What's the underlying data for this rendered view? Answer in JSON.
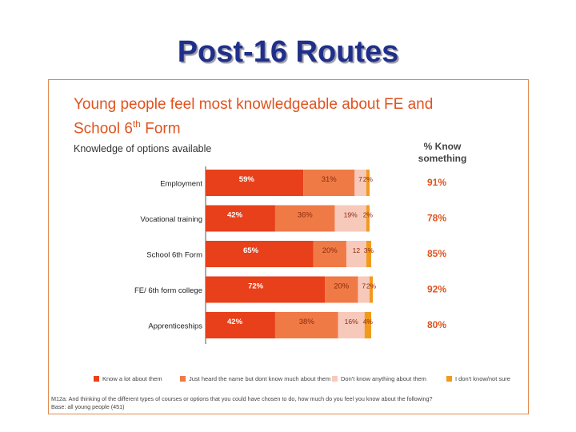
{
  "slide": {
    "title": "Post-16 Routes"
  },
  "headline": {
    "line1": "Young people feel most knowledgeable about FE and",
    "line2_pre": "School 6",
    "line2_sup": "th",
    "line2_post": " Form"
  },
  "subtitle": "Knowledge of options available",
  "column_header": {
    "line1": "% Know",
    "line2": "something"
  },
  "footnote": {
    "question": "M12a: And thinking of the different types of courses or options that you could have chosen to do, how much do you feel you know about the following?",
    "base": "Base: all young people (451)"
  },
  "colors": {
    "panel_border": "#e28a4b",
    "title": "#1f2f8a",
    "headline": "#e0531f",
    "know_something_text": "#e0531f"
  },
  "chart_data": {
    "type": "bar",
    "orientation": "horizontal",
    "stacked": true,
    "categories": [
      "Employment",
      "Vocational training",
      "School 6th Form",
      "FE/ 6th form college",
      "Apprenticeships"
    ],
    "series": [
      {
        "name": "Know a lot about them",
        "color": "#e8401a",
        "values": [
          59,
          42,
          65,
          72,
          42
        ],
        "labels": [
          "59%",
          "42%",
          "65%",
          "72%",
          "42%"
        ],
        "label_color": "#ffffff"
      },
      {
        "name": "Just heard the name but dont know much about them",
        "color": "#f07a45",
        "values": [
          31,
          36,
          20,
          20,
          38
        ],
        "labels": [
          "31%",
          "36%",
          "20%",
          "20%",
          "38%"
        ],
        "label_color": "#8a2a10"
      },
      {
        "name": "Don't know anything about them",
        "color": "#f7c9bb",
        "values": [
          7,
          19,
          12,
          7,
          16
        ],
        "labels": [
          "7",
          "19%",
          "12",
          "7",
          "16%"
        ],
        "label_color": "#8a2a10"
      },
      {
        "name": "I don't know/not sure",
        "color": "#f29a1d",
        "values": [
          2,
          2,
          3,
          2,
          4
        ],
        "labels": [
          "2%",
          "2%",
          "3%",
          "2%",
          "4%"
        ],
        "label_color": "#8a2a10"
      }
    ],
    "know_something": [
      "91%",
      "78%",
      "85%",
      "92%",
      "80%"
    ],
    "xlim": [
      0,
      100
    ],
    "legend_position": "bottom",
    "grid": false
  }
}
